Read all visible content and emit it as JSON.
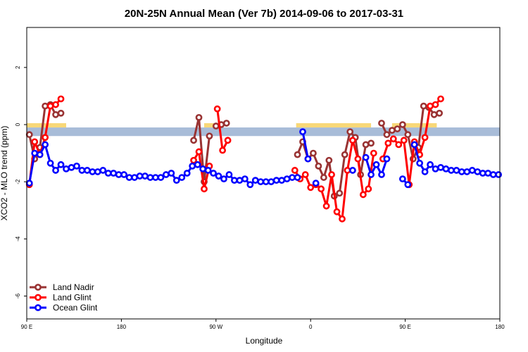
{
  "chart_data": {
    "type": "line",
    "title": "20N-25N Annual Mean (Ver 7b)   2014-09-06 to 2017-03-31",
    "xlabel": "Longitude",
    "ylabel": "XCO2 - MLO trend (ppm)",
    "xlim": [
      0,
      360
    ],
    "ylim": [
      -6.8,
      3.4
    ],
    "xticks": [
      {
        "value": 0,
        "label": "90 E"
      },
      {
        "value": 72,
        "label": "180"
      },
      {
        "value": 144,
        "label": "90 W"
      },
      {
        "value": 216,
        "label": "0"
      },
      {
        "value": 288,
        "label": "90 E"
      },
      {
        "value": 360,
        "label": "180"
      }
    ],
    "yticks": [
      {
        "value": 2,
        "label": "2"
      },
      {
        "value": 0,
        "label": "0"
      },
      {
        "value": -2,
        "label": "-2"
      },
      {
        "value": -4,
        "label": "-4"
      },
      {
        "value": -6,
        "label": "-6"
      }
    ],
    "reference_band": {
      "y": [
        -0.4,
        -0.1
      ],
      "color": "#a8bcd8"
    },
    "land_strip_color": "#f8d878",
    "land_strips": [
      [
        0,
        30
      ],
      [
        135,
        148
      ],
      [
        205,
        262
      ],
      [
        278,
        312
      ]
    ],
    "series": [
      {
        "name": "Land Nadir",
        "color": "#993333",
        "segments": [
          [
            [
              2,
              -0.35
            ],
            [
              6,
              -1.2
            ],
            [
              10,
              -0.8
            ],
            [
              14,
              0.65
            ],
            [
              18,
              0.7
            ],
            [
              22,
              0.35
            ],
            [
              26,
              0.4
            ]
          ],
          [
            [
              127,
              -0.55
            ],
            [
              131,
              0.25
            ],
            [
              135,
              -2.0
            ],
            [
              139,
              -0.4
            ]
          ],
          [
            [
              144,
              -0.05
            ],
            [
              148,
              0.0
            ],
            [
              152,
              0.05
            ]
          ],
          [
            [
              206,
              -1.05
            ],
            [
              210,
              -0.6
            ],
            [
              214,
              -1.2
            ],
            [
              218,
              -1.0
            ],
            [
              222,
              -1.45
            ],
            [
              226,
              -1.85
            ],
            [
              230,
              -1.25
            ],
            [
              234,
              -2.5
            ],
            [
              238,
              -2.4
            ],
            [
              242,
              -1.05
            ],
            [
              246,
              -0.25
            ],
            [
              250,
              -0.45
            ],
            [
              254,
              -1.75
            ],
            [
              258,
              -0.7
            ],
            [
              262,
              -0.65
            ]
          ],
          [
            [
              270,
              0.05
            ],
            [
              274,
              -0.35
            ],
            [
              278,
              -0.2
            ],
            [
              282,
              -0.15
            ],
            [
              286,
              0.0
            ],
            [
              290,
              -0.35
            ],
            [
              294,
              -1.2
            ],
            [
              298,
              -0.8
            ],
            [
              302,
              0.65
            ],
            [
              306,
              0.6
            ],
            [
              310,
              0.35
            ],
            [
              314,
              0.4
            ]
          ]
        ]
      },
      {
        "name": "Land Glint",
        "color": "#ff0000",
        "segments": [
          [
            [
              2,
              -2.1
            ],
            [
              6,
              -0.6
            ],
            [
              10,
              -1.05
            ],
            [
              14,
              -0.45
            ],
            [
              18,
              0.65
            ],
            [
              22,
              0.7
            ],
            [
              26,
              0.9
            ]
          ],
          [
            [
              127,
              -1.25
            ],
            [
              131,
              -0.95
            ],
            [
              135,
              -2.25
            ],
            [
              139,
              -1.45
            ]
          ],
          [
            [
              145,
              0.55
            ],
            [
              149,
              -0.9
            ],
            [
              153,
              -0.55
            ]
          ],
          [
            [
              204,
              -1.6
            ],
            [
              208,
              -1.9
            ],
            [
              212,
              -1.75
            ],
            [
              216,
              -2.2
            ],
            [
              220,
              -2.1
            ],
            [
              224,
              -2.25
            ],
            [
              228,
              -2.85
            ],
            [
              232,
              -1.75
            ],
            [
              236,
              -3.05
            ],
            [
              240,
              -3.3
            ],
            [
              244,
              -1.6
            ],
            [
              248,
              -0.55
            ],
            [
              252,
              -1.2
            ],
            [
              256,
              -2.45
            ],
            [
              260,
              -2.25
            ],
            [
              264,
              -1.0
            ]
          ],
          [
            [
              271,
              -1.2
            ],
            [
              275,
              -0.65
            ],
            [
              279,
              -0.5
            ],
            [
              283,
              -0.7
            ],
            [
              287,
              -0.55
            ],
            [
              291,
              -2.1
            ],
            [
              295,
              -0.6
            ],
            [
              299,
              -1.05
            ],
            [
              303,
              -0.45
            ],
            [
              307,
              0.65
            ],
            [
              311,
              0.7
            ],
            [
              315,
              0.9
            ]
          ]
        ]
      },
      {
        "name": "Ocean Glint",
        "color": "#0000ff",
        "segments": [
          [
            [
              2,
              -2.05
            ],
            [
              6,
              -1.0
            ],
            [
              10,
              -1.05
            ],
            [
              14,
              -0.7
            ],
            [
              18,
              -1.35
            ],
            [
              22,
              -1.6
            ],
            [
              26,
              -1.4
            ],
            [
              30,
              -1.55
            ],
            [
              34,
              -1.5
            ],
            [
              38,
              -1.45
            ],
            [
              42,
              -1.6
            ],
            [
              46,
              -1.6
            ],
            [
              50,
              -1.65
            ],
            [
              54,
              -1.65
            ],
            [
              58,
              -1.6
            ],
            [
              62,
              -1.7
            ],
            [
              66,
              -1.7
            ],
            [
              70,
              -1.75
            ],
            [
              74,
              -1.75
            ],
            [
              78,
              -1.85
            ],
            [
              82,
              -1.85
            ],
            [
              86,
              -1.8
            ],
            [
              90,
              -1.8
            ],
            [
              94,
              -1.85
            ],
            [
              98,
              -1.85
            ],
            [
              102,
              -1.85
            ],
            [
              106,
              -1.75
            ],
            [
              110,
              -1.7
            ],
            [
              114,
              -1.95
            ],
            [
              118,
              -1.85
            ],
            [
              122,
              -1.7
            ],
            [
              126,
              -1.45
            ],
            [
              130,
              -1.4
            ],
            [
              134,
              -1.55
            ],
            [
              138,
              -1.6
            ],
            [
              142,
              -1.7
            ],
            [
              146,
              -1.8
            ],
            [
              150,
              -1.9
            ],
            [
              154,
              -1.75
            ],
            [
              158,
              -1.95
            ],
            [
              162,
              -1.95
            ],
            [
              166,
              -1.9
            ],
            [
              170,
              -2.1
            ],
            [
              174,
              -1.95
            ],
            [
              178,
              -2.0
            ],
            [
              182,
              -2.0
            ],
            [
              186,
              -2.0
            ],
            [
              190,
              -1.95
            ],
            [
              194,
              -1.95
            ],
            [
              198,
              -1.9
            ],
            [
              202,
              -1.85
            ],
            [
              206,
              -1.85
            ]
          ],
          [
            [
              210,
              -0.25
            ],
            [
              214,
              -1.2
            ]
          ],
          [
            [
              220,
              -2.05
            ]
          ],
          [
            [
              248,
              -1.6
            ]
          ],
          [
            [
              258,
              -1.15
            ],
            [
              262,
              -1.75
            ],
            [
              266,
              -1.4
            ],
            [
              270,
              -1.75
            ],
            [
              274,
              -1.2
            ]
          ],
          [
            [
              286,
              -1.9
            ],
            [
              290,
              -2.1
            ]
          ],
          [
            [
              295,
              -0.7
            ],
            [
              299,
              -1.35
            ],
            [
              303,
              -1.65
            ],
            [
              307,
              -1.4
            ],
            [
              311,
              -1.55
            ],
            [
              315,
              -1.5
            ],
            [
              319,
              -1.55
            ],
            [
              323,
              -1.6
            ],
            [
              327,
              -1.6
            ],
            [
              331,
              -1.65
            ],
            [
              335,
              -1.65
            ],
            [
              339,
              -1.6
            ],
            [
              343,
              -1.65
            ],
            [
              347,
              -1.7
            ],
            [
              351,
              -1.7
            ],
            [
              355,
              -1.75
            ],
            [
              359,
              -1.75
            ]
          ]
        ]
      }
    ],
    "legend": {
      "position": "bottom-left"
    }
  }
}
